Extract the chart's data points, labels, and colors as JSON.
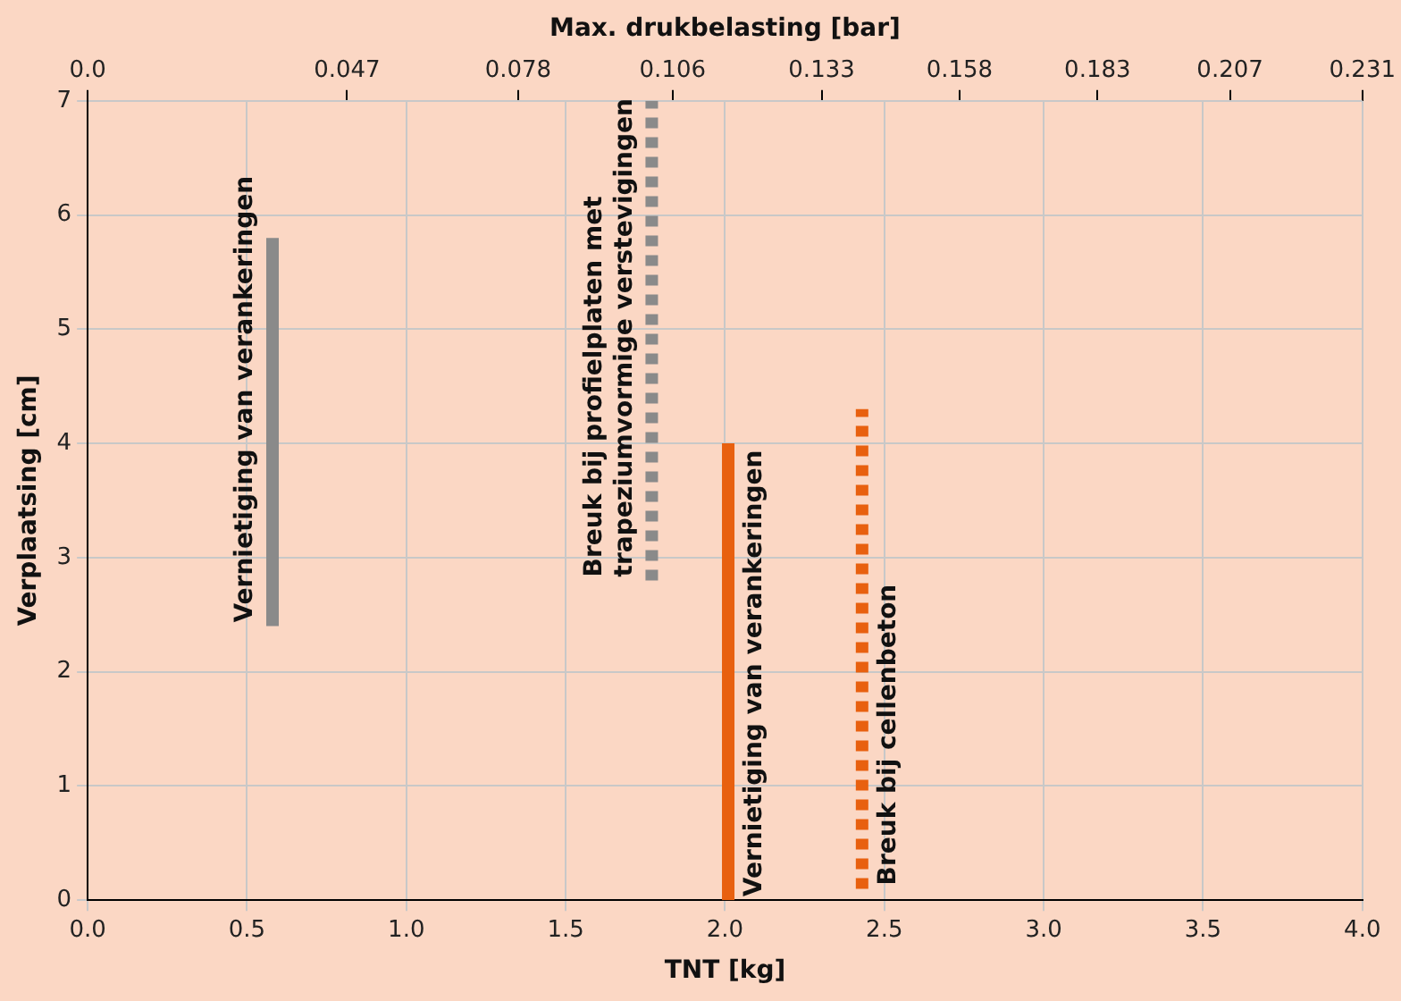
{
  "chart_data": {
    "type": "line",
    "xlabel": "TNT [kg]",
    "ylabel": "Verplaatsing [cm]",
    "x2label": "Max. drukbelasting [bar]",
    "xlim": [
      0,
      4
    ],
    "xticks": [
      {
        "value": 0,
        "label": "0.0"
      },
      {
        "value": 0.5,
        "label": "0.5"
      },
      {
        "value": 1,
        "label": "1.0"
      },
      {
        "value": 1.5,
        "label": "1.5"
      },
      {
        "value": 2,
        "label": "2.0"
      },
      {
        "value": 2.5,
        "label": "2.5"
      },
      {
        "value": 3,
        "label": "3.0"
      },
      {
        "value": 3.5,
        "label": "3.5"
      },
      {
        "value": 4,
        "label": "4.0"
      }
    ],
    "x2lim": [
      0,
      0.231
    ],
    "x2ticks": [
      {
        "value": 0,
        "label": "0.0"
      },
      0.047,
      0.078,
      0.106,
      0.133,
      0.158,
      0.183,
      0.207,
      0.231
    ],
    "ylim": [
      0,
      7
    ],
    "yticks": [
      0,
      1,
      2,
      3,
      4,
      5,
      6,
      7
    ],
    "grid": true,
    "legend": false,
    "marker": "none",
    "series": [
      {
        "name": "Vernietiging van verankeringen",
        "color": "#8a8a8a",
        "line_style": "solid",
        "x": [
          0.58,
          0.58
        ],
        "values": [
          2.4,
          5.8
        ]
      },
      {
        "name": "Breuk bij profielplaten met trapeziumvormige verstevigingen",
        "color": "#8a8a8a",
        "line_style": "dashed",
        "x": [
          1.77,
          1.77
        ],
        "values": [
          2.8,
          7.0
        ]
      },
      {
        "name": "Vernietiging van verankeringen",
        "color": "#e8600f",
        "line_style": "solid",
        "x": [
          2.01,
          2.01
        ],
        "values": [
          0,
          4.0
        ]
      },
      {
        "name": "Breuk bij cellenbeton",
        "color": "#e8600f",
        "line_style": "dashed",
        "x": [
          2.43,
          2.43
        ],
        "values": [
          0.1,
          4.3
        ]
      }
    ]
  }
}
